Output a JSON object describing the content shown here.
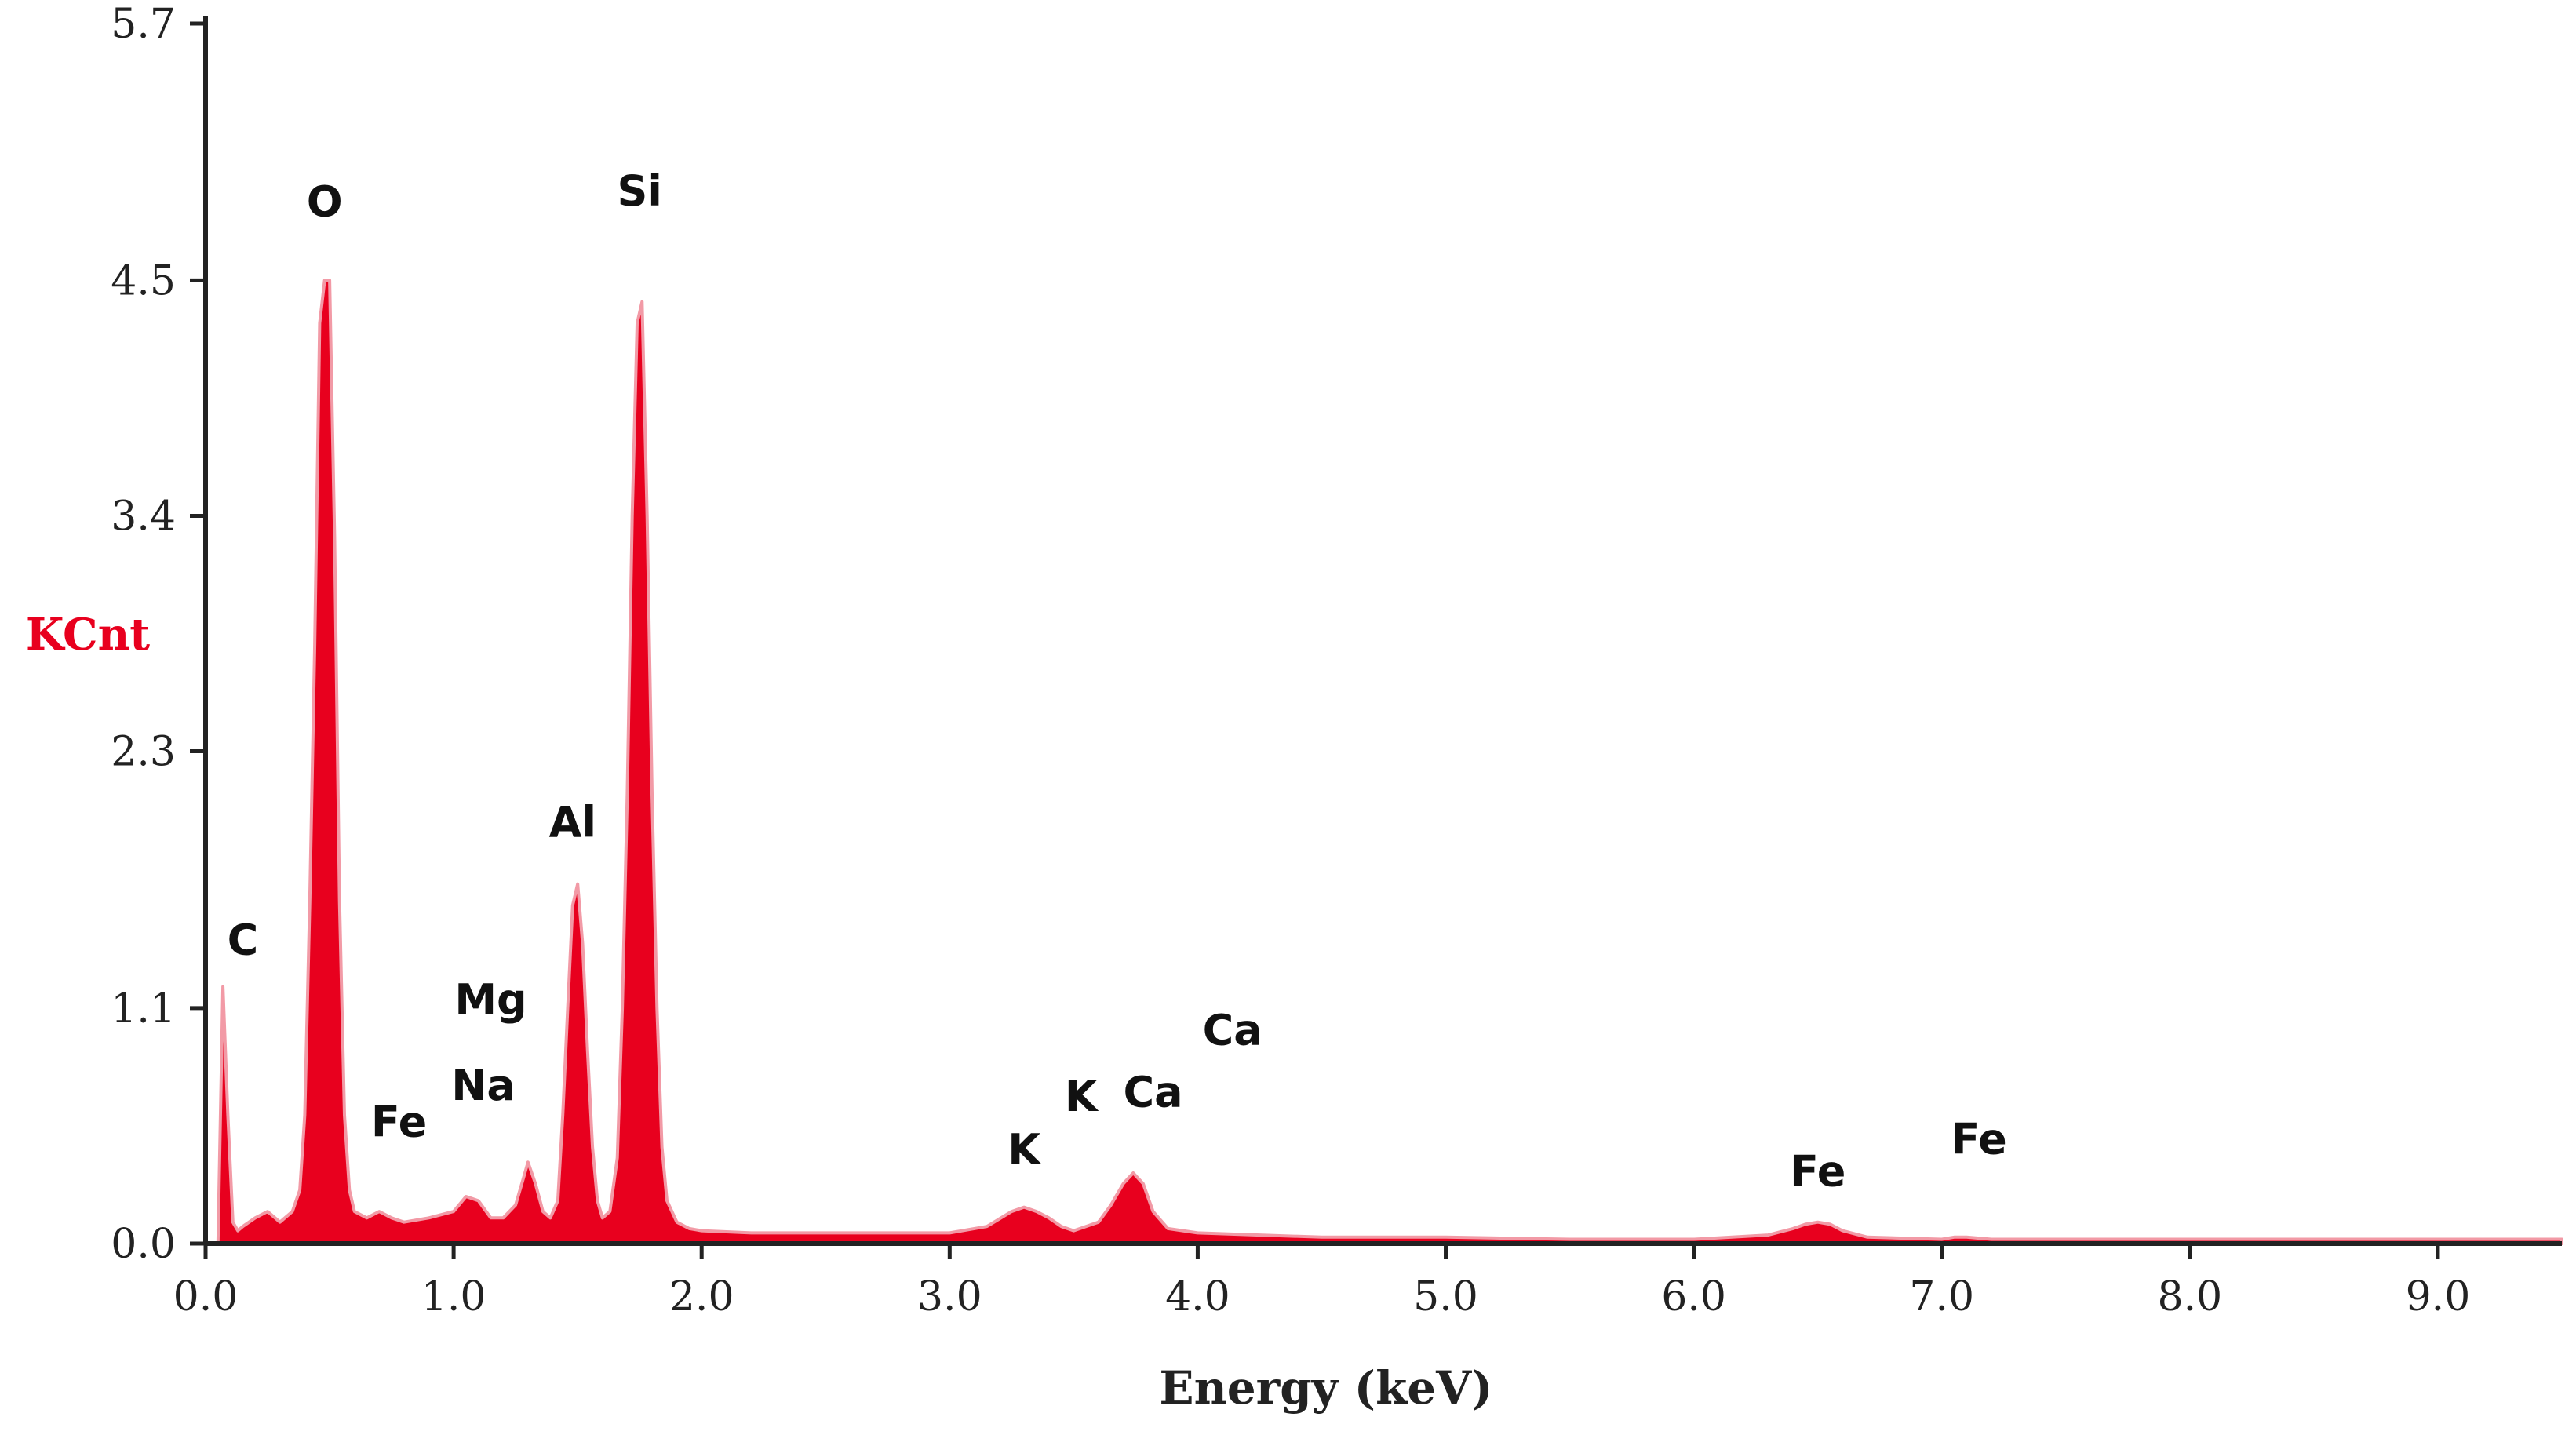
{
  "chart_data": {
    "type": "area",
    "title": "",
    "xlabel": "Energy (keV)",
    "ylabel": "KCnt",
    "xlim": [
      0.0,
      9.5
    ],
    "ylim": [
      0.0,
      5.7
    ],
    "x_ticks": [
      "0.0",
      "1.0",
      "2.0",
      "3.0",
      "4.0",
      "5.0",
      "6.0",
      "7.0",
      "8.0",
      "9.0"
    ],
    "y_ticks": [
      "0.0",
      "1.1",
      "2.3",
      "3.4",
      "4.5",
      "5.7"
    ],
    "grid": false,
    "colors": {
      "fill": "#e8001e",
      "light": "#f29aa6",
      "ylabel": "#e8001e",
      "axis": "#222222"
    },
    "series": [
      {
        "x": [
          0.0,
          0.05,
          0.07,
          0.09,
          0.11,
          0.13,
          0.15,
          0.2,
          0.25,
          0.3,
          0.35,
          0.38,
          0.4,
          0.42,
          0.44,
          0.46,
          0.48,
          0.5,
          0.52,
          0.54,
          0.56,
          0.58,
          0.6,
          0.65,
          0.7,
          0.75,
          0.8,
          0.9,
          1.0,
          1.05,
          1.1,
          1.15,
          1.2,
          1.25,
          1.28,
          1.3,
          1.33,
          1.36,
          1.39,
          1.42,
          1.44,
          1.46,
          1.48,
          1.5,
          1.52,
          1.54,
          1.56,
          1.58,
          1.6,
          1.63,
          1.66,
          1.68,
          1.7,
          1.72,
          1.74,
          1.76,
          1.78,
          1.8,
          1.82,
          1.84,
          1.86,
          1.9,
          1.95,
          2.0,
          2.2,
          2.5,
          2.8,
          3.0,
          3.15,
          3.25,
          3.3,
          3.35,
          3.4,
          3.45,
          3.5,
          3.6,
          3.65,
          3.7,
          3.74,
          3.78,
          3.82,
          3.88,
          4.0,
          4.5,
          5.0,
          5.5,
          6.0,
          6.3,
          6.4,
          6.45,
          6.5,
          6.55,
          6.6,
          6.7,
          7.0,
          7.05,
          7.1,
          7.2,
          7.5,
          8.0,
          8.5,
          9.0,
          9.5
        ],
        "y": [
          0.0,
          0.0,
          1.2,
          0.6,
          0.1,
          0.06,
          0.08,
          0.12,
          0.15,
          0.1,
          0.15,
          0.25,
          0.6,
          1.6,
          2.8,
          4.3,
          4.5,
          4.5,
          3.3,
          1.6,
          0.6,
          0.25,
          0.15,
          0.12,
          0.15,
          0.12,
          0.1,
          0.12,
          0.15,
          0.22,
          0.2,
          0.12,
          0.12,
          0.18,
          0.3,
          0.38,
          0.28,
          0.15,
          0.12,
          0.2,
          0.6,
          1.1,
          1.58,
          1.68,
          1.4,
          0.9,
          0.45,
          0.2,
          0.12,
          0.15,
          0.4,
          1.1,
          2.1,
          3.4,
          4.3,
          4.4,
          3.4,
          2.1,
          1.1,
          0.45,
          0.2,
          0.1,
          0.07,
          0.06,
          0.05,
          0.05,
          0.05,
          0.05,
          0.08,
          0.15,
          0.17,
          0.15,
          0.12,
          0.08,
          0.06,
          0.1,
          0.18,
          0.28,
          0.33,
          0.28,
          0.15,
          0.07,
          0.05,
          0.03,
          0.03,
          0.02,
          0.02,
          0.04,
          0.07,
          0.09,
          0.1,
          0.09,
          0.06,
          0.03,
          0.02,
          0.03,
          0.03,
          0.02,
          0.02,
          0.02,
          0.02,
          0.02,
          0.02
        ]
      }
    ],
    "annotations": [
      {
        "text": "C",
        "x": 0.15,
        "y": 1.35
      },
      {
        "text": "O",
        "x": 0.48,
        "y": 4.8
      },
      {
        "text": "Fe",
        "x": 0.78,
        "y": 0.5
      },
      {
        "text": "Mg",
        "x": 1.15,
        "y": 1.07
      },
      {
        "text": "Na",
        "x": 1.12,
        "y": 0.67
      },
      {
        "text": "Al",
        "x": 1.48,
        "y": 1.9
      },
      {
        "text": "Si",
        "x": 1.75,
        "y": 4.85
      },
      {
        "text": "K",
        "x": 3.3,
        "y": 0.37
      },
      {
        "text": "K",
        "x": 3.53,
        "y": 0.62
      },
      {
        "text": "Ca",
        "x": 3.82,
        "y": 0.64
      },
      {
        "text": "Ca",
        "x": 4.14,
        "y": 0.93
      },
      {
        "text": "Fe",
        "x": 6.5,
        "y": 0.27
      },
      {
        "text": "Fe",
        "x": 7.15,
        "y": 0.42
      }
    ]
  }
}
